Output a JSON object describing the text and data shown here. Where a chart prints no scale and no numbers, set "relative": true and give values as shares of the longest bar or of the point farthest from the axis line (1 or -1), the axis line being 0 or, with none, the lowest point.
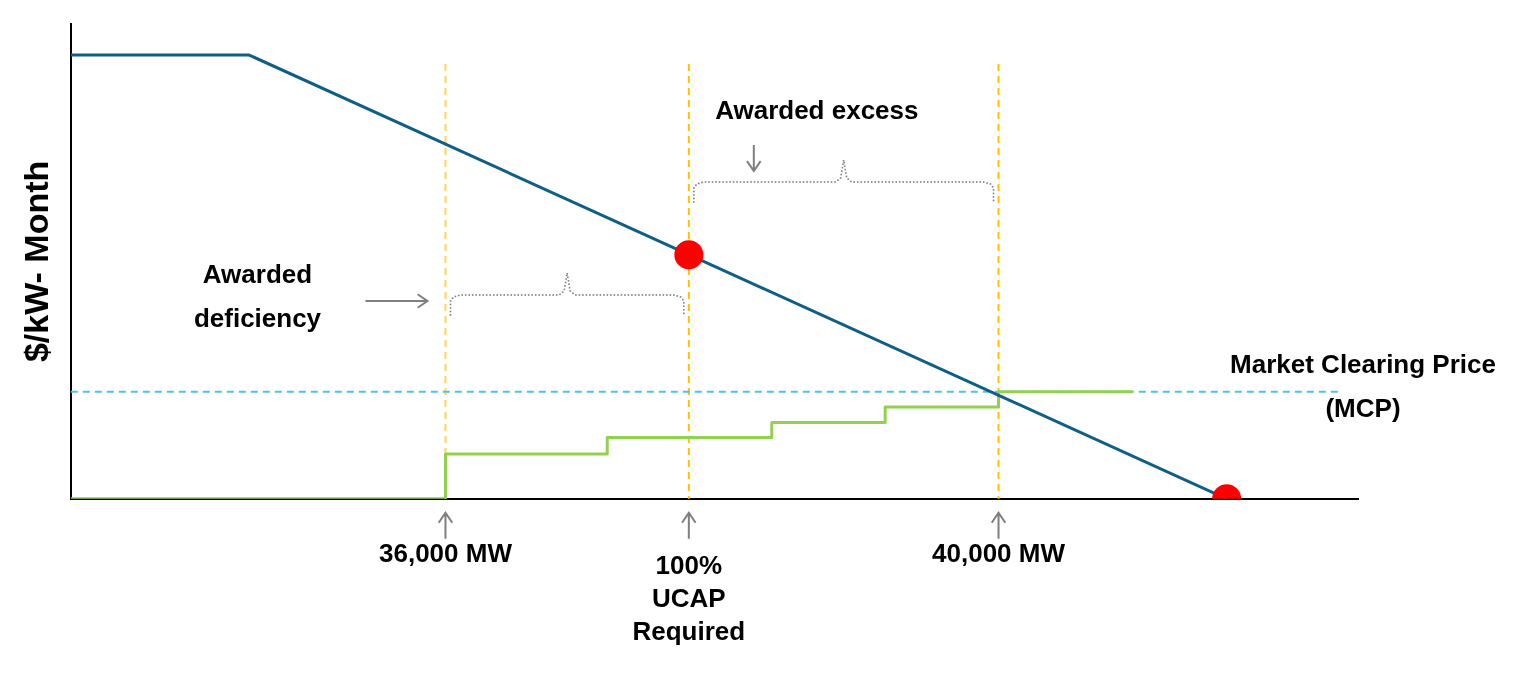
{
  "chart_data": {
    "type": "line",
    "ylabel": "$/kW- Month",
    "relative": true,
    "xlim": [
      33290,
      42600
    ],
    "xticks": [
      {
        "value": 36000,
        "label": "36,000 MW"
      },
      {
        "value": 40000,
        "label": "40,000 MW"
      }
    ],
    "series": [
      {
        "color": "#0f5e85",
        "marker": "none",
        "x": [
          33290,
          34580,
          41650
        ],
        "values": [
          1,
          1,
          0
        ]
      },
      {
        "type": "step",
        "color": "#92d050",
        "marker": "none",
        "x": [
          33290,
          36000,
          37170,
          38360,
          39180,
          40000,
          40970
        ],
        "values": [
          0,
          0.101,
          0.138,
          0.172,
          0.207,
          0.241,
          0.241
        ]
      },
      {
        "type": "scatter",
        "color": "#ff0000",
        "marker": "circle",
        "x": [
          37760,
          41650
        ],
        "values": [
          0.55,
          0
        ]
      }
    ],
    "ref_lines": [
      {
        "axis": "x",
        "value": 36000,
        "color": "#ffd54f",
        "line_style": "dashed"
      },
      {
        "axis": "x",
        "value": 37760,
        "color": "#ffc000",
        "line_style": "dashed",
        "label": "100%\nUCAP\nRequired"
      },
      {
        "axis": "x",
        "value": 40000,
        "color": "#ffc000",
        "line_style": "dashed"
      },
      {
        "axis": "y",
        "value": 0.241,
        "color": "#4dc3e8",
        "line_style": "dashed",
        "label": "Market Clearing Price (MCP)"
      }
    ],
    "annotations": [
      "Awarded deficiency",
      "Awarded excess"
    ]
  }
}
